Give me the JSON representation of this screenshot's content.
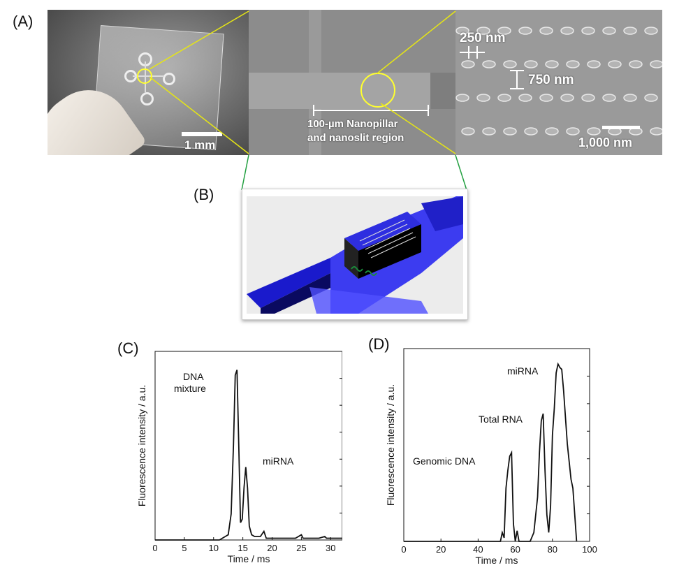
{
  "panels": {
    "a_label": "(A)",
    "b_label": "(B)",
    "c_label": "(C)",
    "d_label": "(D)"
  },
  "panel_a": {
    "scale_chip": "1 mm",
    "region_label_line1": "100-µm Nanopillar",
    "region_label_line2": "and nanoslit region",
    "pillar_gap": "250 nm",
    "pillar_pitch": "750 nm",
    "scale_sem": "1,000 nm"
  },
  "chart_data": [
    {
      "type": "line",
      "panel": "(C)",
      "xlabel": "Time / ms",
      "ylabel": "Fluorescence intensity / a.u.",
      "xlim": [
        0,
        32
      ],
      "xticks": [
        0,
        5,
        10,
        15,
        20,
        25,
        30
      ],
      "annotations": [
        {
          "text_line1": "DNA",
          "text_line2": "mixture"
        },
        {
          "text": "miRNA"
        }
      ],
      "series": [
        {
          "x": [
            0,
            11,
            12,
            12.5,
            13,
            13.4,
            13.7,
            14.0,
            14.3,
            14.6,
            14.9,
            15.2,
            15.5,
            15.8,
            16.1,
            16.5,
            17.0,
            18.0,
            18.6,
            19.0,
            20,
            24,
            25,
            25.3,
            26,
            28,
            29,
            29.3,
            30,
            32
          ],
          "y": [
            0.0,
            0.0,
            0.02,
            0.03,
            0.15,
            0.55,
            0.95,
            0.98,
            0.55,
            0.1,
            0.12,
            0.3,
            0.42,
            0.3,
            0.08,
            0.03,
            0.02,
            0.02,
            0.05,
            0.01,
            0.01,
            0.01,
            0.03,
            0.01,
            0.01,
            0.01,
            0.02,
            0.01,
            0.01,
            0.01
          ]
        }
      ]
    },
    {
      "type": "line",
      "panel": "(D)",
      "xlabel": "Time / ms",
      "ylabel": "Fluorescence intensity / a.u.",
      "xlim": [
        0,
        100
      ],
      "xticks": [
        0,
        20,
        40,
        60,
        80,
        100
      ],
      "annotations": [
        {
          "text": "Genomic DNA"
        },
        {
          "text": "Total RNA"
        },
        {
          "text": "miRNA"
        }
      ],
      "series": [
        {
          "x": [
            0,
            52,
            53,
            54,
            55,
            56,
            57,
            58,
            59,
            60,
            61,
            62,
            63,
            68,
            70,
            72,
            73,
            74,
            75,
            76,
            77,
            78,
            79,
            80,
            81,
            82,
            83,
            84,
            85,
            86,
            87,
            88,
            89,
            90,
            91,
            92,
            93
          ],
          "y": [
            0.0,
            0.0,
            0.05,
            0.02,
            0.3,
            0.4,
            0.48,
            0.5,
            0.1,
            0.0,
            0.06,
            0.0,
            0.0,
            0.0,
            0.05,
            0.25,
            0.5,
            0.68,
            0.72,
            0.4,
            0.15,
            0.05,
            0.2,
            0.6,
            0.75,
            0.95,
            1.0,
            0.98,
            0.97,
            0.85,
            0.7,
            0.55,
            0.45,
            0.35,
            0.3,
            0.15,
            0.0
          ]
        }
      ]
    }
  ]
}
